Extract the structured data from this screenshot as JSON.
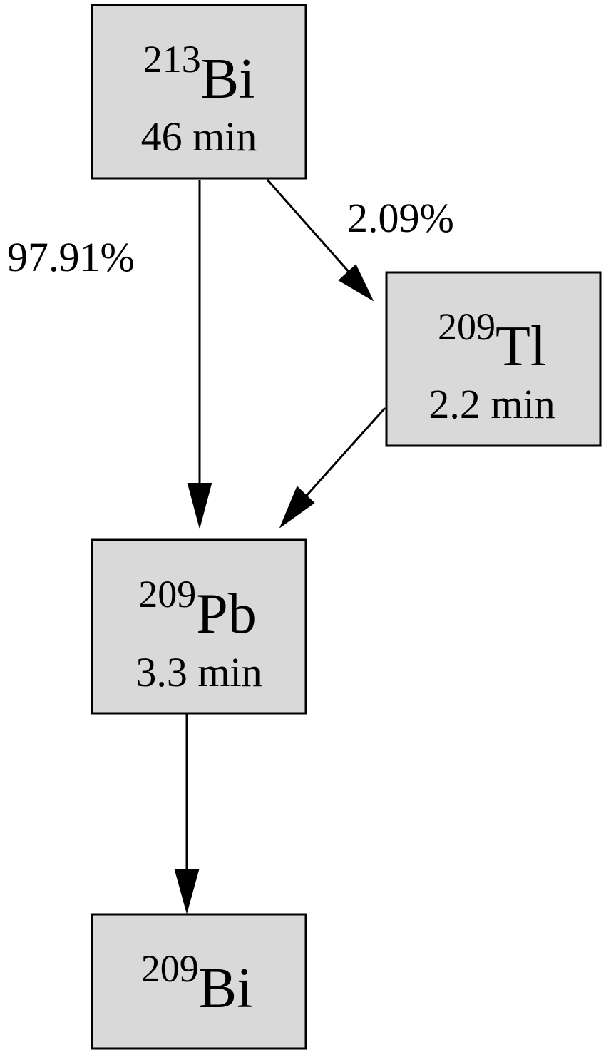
{
  "nodes": {
    "bi213": {
      "mass": "213",
      "symbol": "Bi",
      "halflife": "46 min"
    },
    "tl209": {
      "mass": "209",
      "symbol": "Tl",
      "halflife": "2.2 min"
    },
    "pb209": {
      "mass": "209",
      "symbol": "Pb",
      "halflife": "3.3 min"
    },
    "bi209": {
      "mass": "209",
      "symbol": "Bi"
    }
  },
  "edges": {
    "bi213_to_pb209": {
      "label": "97.91%"
    },
    "bi213_to_tl209": {
      "label": "2.09%"
    },
    "tl209_to_pb209": {
      "label": ""
    },
    "pb209_to_bi209": {
      "label": ""
    }
  }
}
